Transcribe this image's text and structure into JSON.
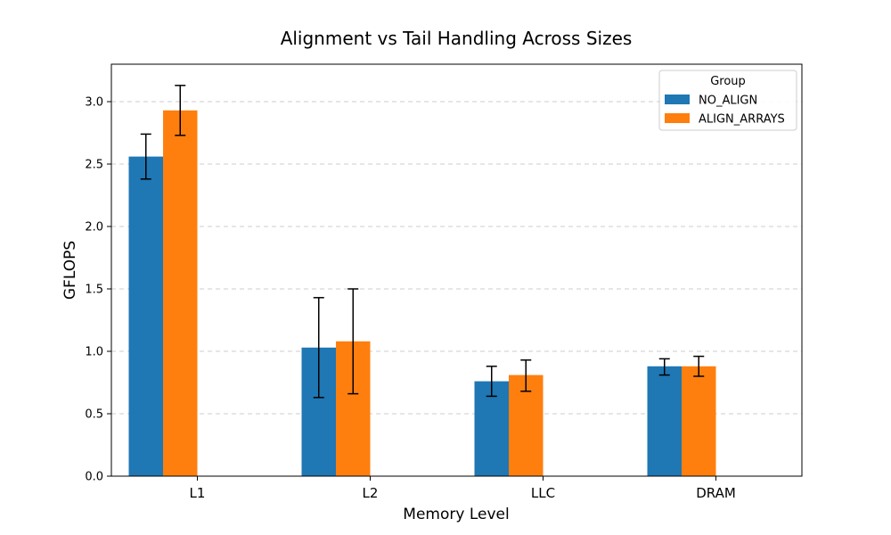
{
  "chart_data": {
    "type": "bar",
    "title": "Alignment vs Tail Handling Across Sizes",
    "xlabel": "Memory Level",
    "ylabel": "GFLOPS",
    "categories": [
      "L1",
      "L2",
      "LLC",
      "DRAM"
    ],
    "ylim": [
      0,
      3.3
    ],
    "yticks": [
      0.0,
      0.5,
      1.0,
      1.5,
      2.0,
      2.5,
      3.0
    ],
    "ytick_labels": [
      "0.0",
      "0.5",
      "1.0",
      "1.5",
      "2.0",
      "2.5",
      "3.0"
    ],
    "grid": "y-dashed",
    "legend": {
      "title": "Group",
      "placement": "top-right"
    },
    "series": [
      {
        "name": "NO_ALIGN",
        "color": "#1f77b4",
        "values": [
          2.56,
          1.03,
          0.76,
          0.88
        ],
        "err_low": [
          2.38,
          0.63,
          0.64,
          0.81
        ],
        "err_high": [
          2.74,
          1.43,
          0.88,
          0.94
        ]
      },
      {
        "name": "ALIGN_ARRAYS",
        "color": "#ff7f0e",
        "values": [
          2.93,
          1.08,
          0.81,
          0.88
        ],
        "err_low": [
          2.73,
          0.66,
          0.68,
          0.8
        ],
        "err_high": [
          3.13,
          1.5,
          0.93,
          0.96
        ]
      }
    ]
  }
}
